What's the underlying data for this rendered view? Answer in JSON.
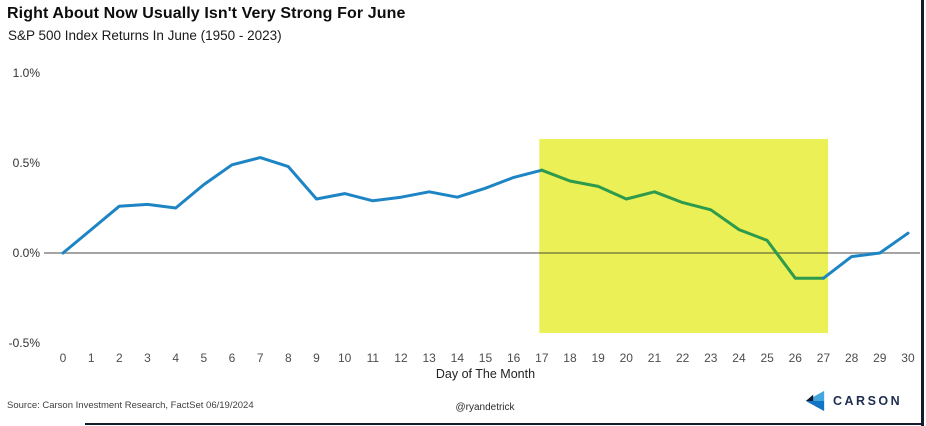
{
  "chart_data": {
    "type": "line",
    "title": "Right About Now Usually Isn't Very Strong For June",
    "subtitle": "S&P 500 Index Returns In June (1950 - 2023)",
    "xlabel": "Day of The Month",
    "ylabel": "",
    "x": [
      0,
      1,
      2,
      3,
      4,
      5,
      6,
      7,
      8,
      9,
      10,
      11,
      12,
      13,
      14,
      15,
      16,
      17,
      18,
      19,
      20,
      21,
      22,
      23,
      24,
      25,
      26,
      27,
      28,
      29,
      30
    ],
    "values": [
      0.0,
      0.13,
      0.26,
      0.27,
      0.25,
      0.38,
      0.49,
      0.53,
      0.48,
      0.3,
      0.33,
      0.29,
      0.31,
      0.34,
      0.31,
      0.36,
      0.42,
      0.46,
      0.4,
      0.37,
      0.3,
      0.34,
      0.28,
      0.24,
      0.13,
      0.07,
      -0.14,
      -0.14,
      -0.02,
      0.0,
      0.11
    ],
    "y_ticks": [
      {
        "value": 1.0,
        "label": "1.0%"
      },
      {
        "value": 0.5,
        "label": "0.5%"
      },
      {
        "value": 0.0,
        "label": "0.0%"
      },
      {
        "value": -0.5,
        "label": "-0.5%"
      }
    ],
    "xlim": [
      0,
      30
    ],
    "ylim": [
      -0.55,
      1.07
    ],
    "grid": false,
    "legend": false,
    "line_color": "#1e85c5",
    "zero_line_color": "#a8a8a8",
    "highlight_region": {
      "x_start": 17,
      "x_end": 27,
      "fill": "#eaf055",
      "line_color_inside": "#2e9a4c"
    }
  },
  "footer": {
    "source": "Source: Carson Investment Research, FactSet 06/19/2024",
    "handle": "@ryandetrick",
    "logo_text": "CARSON"
  }
}
